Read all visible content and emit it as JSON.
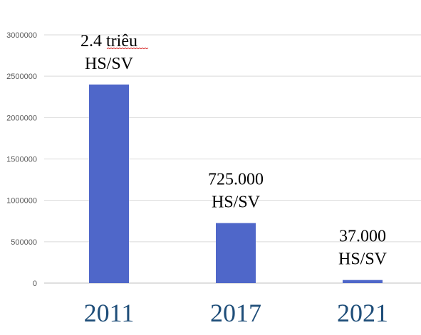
{
  "chart_data": {
    "type": "bar",
    "categories": [
      "2011",
      "2017",
      "2021"
    ],
    "values": [
      2400000,
      725000,
      37000
    ],
    "data_labels": [
      [
        "2.4 triêu",
        "HS/SV"
      ],
      [
        "725.000",
        "HS/SV"
      ],
      [
        "37.000",
        "HS/SV"
      ]
    ],
    "ylim": [
      0,
      3000000
    ],
    "yticks": [
      0,
      500000,
      1000000,
      1500000,
      2000000,
      2500000,
      3000000
    ],
    "ytick_labels": [
      "0",
      "500000",
      "1000000",
      "1500000",
      "2000000",
      "2500000",
      "3000000"
    ],
    "grid": true,
    "legend": "none",
    "colors": {
      "bar": "#4f67c9",
      "x_tick_text": "#1f4e79",
      "grid": "#d9d9d9",
      "spellcheck_underline": "#d00000"
    }
  }
}
